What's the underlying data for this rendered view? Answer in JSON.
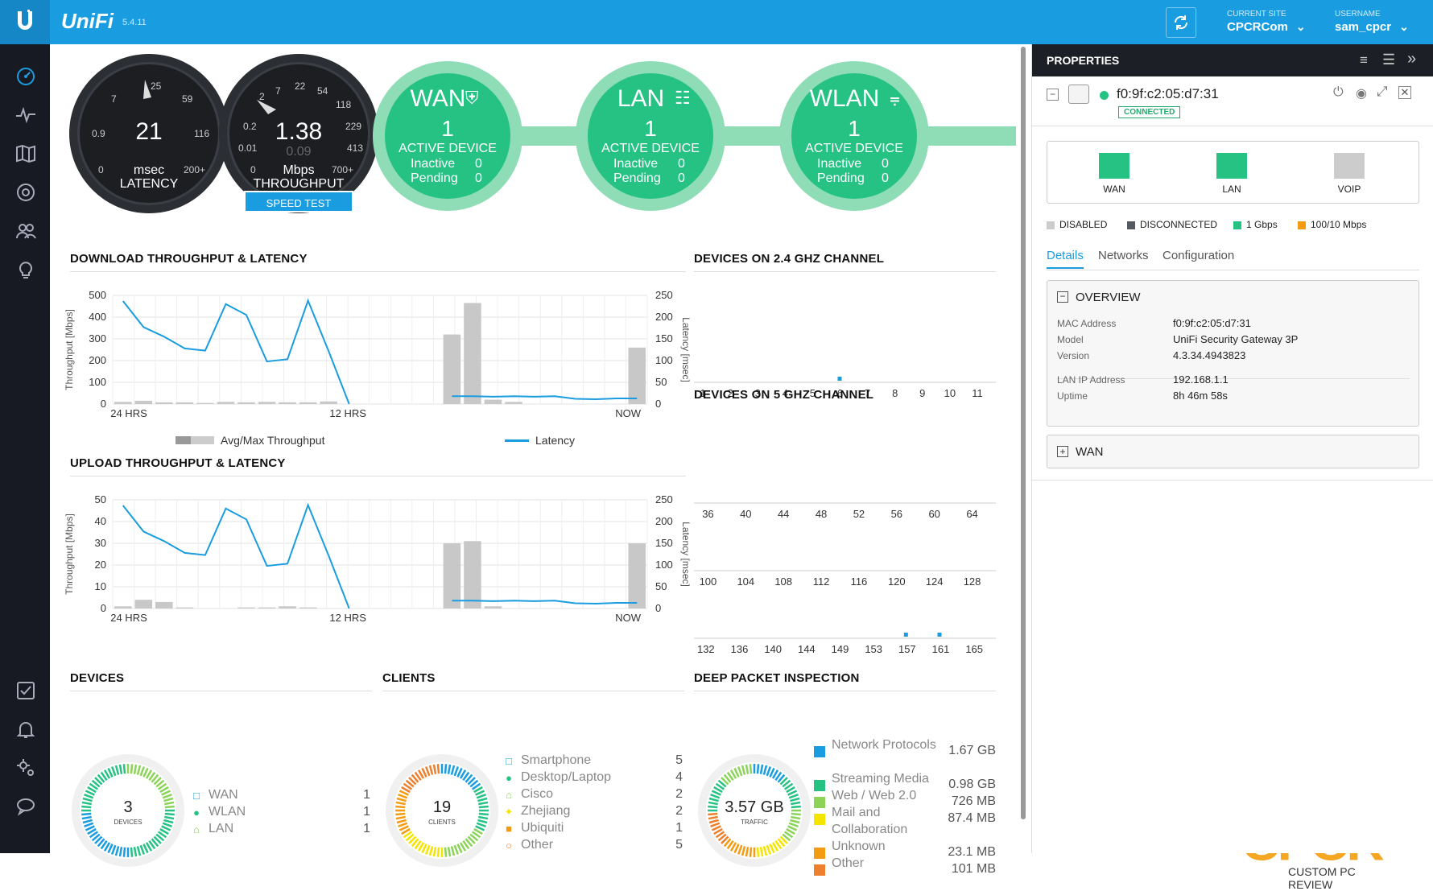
{
  "header": {
    "version": "5.4.11",
    "current_site_label": "CURRENT SITE",
    "current_site": "CPCRCom",
    "username_label": "USERNAME",
    "username": "sam_cpcr"
  },
  "gauges": {
    "latency": {
      "value": "21",
      "unit": "msec",
      "label": "LATENCY",
      "ticks": [
        "25",
        "7",
        "59",
        "0.9",
        "116",
        "0",
        "200+"
      ]
    },
    "throughput": {
      "value": "1.38",
      "sub": "0.09",
      "unit": "Mbps",
      "label": "THROUGHPUT",
      "ticks": [
        "2",
        "22",
        "7",
        "54",
        "118",
        "0.2",
        "229",
        "0.01",
        "413",
        "0",
        "700+"
      ]
    },
    "speed_test": "SPEED TEST"
  },
  "status": [
    {
      "title": "WAN",
      "count": "1",
      "label": "ACTIVE DEVICE",
      "inactive_label": "Inactive",
      "inactive": "0",
      "pending_label": "Pending",
      "pending": "0"
    },
    {
      "title": "LAN",
      "count": "1",
      "label": "ACTIVE DEVICE",
      "inactive_label": "Inactive",
      "inactive": "0",
      "pending_label": "Pending",
      "pending": "0"
    },
    {
      "title": "WLAN",
      "count": "1",
      "label": "ACTIVE DEVICE",
      "inactive_label": "Inactive",
      "inactive": "0",
      "pending_label": "Pending",
      "pending": "0"
    }
  ],
  "download": {
    "title": "DOWNLOAD THROUGHPUT & LATENCY",
    "ylabel": "Throughput [Mbps]",
    "y2label": "Latency [msec]",
    "yticks": [
      "500",
      "400",
      "300",
      "200",
      "100",
      "0"
    ],
    "y2ticks": [
      "250",
      "200",
      "150",
      "100",
      "50",
      "0"
    ],
    "xticks": [
      "24 HRS",
      "12 HRS",
      "NOW"
    ],
    "legend_bar": "Avg/Max Throughput",
    "legend_line": "Latency"
  },
  "upload": {
    "title": "UPLOAD THROUGHPUT & LATENCY",
    "ylabel": "Throughput [Mbps]",
    "y2label": "Latency [msec]",
    "yticks": [
      "50",
      "40",
      "30",
      "20",
      "10",
      "0"
    ],
    "y2ticks": [
      "250",
      "200",
      "150",
      "100",
      "50",
      "0"
    ],
    "xticks": [
      "24 HRS",
      "12 HRS",
      "NOW"
    ]
  },
  "chart_data": [
    {
      "type": "bar",
      "title": "DOWNLOAD THROUGHPUT & LATENCY",
      "ylabel": "Throughput [Mbps]",
      "y2label": "Latency [msec]",
      "ylim": [
        0,
        500
      ],
      "y2lim": [
        0,
        250
      ],
      "series": [
        {
          "name": "Avg/Max Throughput",
          "values": [
            10,
            15,
            8,
            8,
            5,
            10,
            8,
            10,
            8,
            8,
            12,
            0,
            0,
            0,
            0,
            0,
            320,
            465,
            20,
            10,
            0,
            0,
            0,
            0,
            0,
            260
          ]
        },
        {
          "name": "Latency",
          "values": [
            237,
            177,
            155,
            128,
            123,
            230,
            205,
            98,
            103,
            238,
            122,
            0,
            0,
            0,
            0,
            0,
            18,
            18,
            17,
            18,
            17,
            18,
            12,
            11,
            13,
            13
          ]
        }
      ]
    },
    {
      "type": "bar",
      "title": "UPLOAD THROUGHPUT & LATENCY",
      "ylabel": "Throughput [Mbps]",
      "y2label": "Latency [msec]",
      "ylim": [
        0,
        50
      ],
      "y2lim": [
        0,
        250
      ],
      "series": [
        {
          "name": "Avg/Max Throughput",
          "values": [
            1,
            4,
            3,
            0.5,
            0,
            0,
            0.5,
            0.5,
            1,
            0.5,
            0,
            0,
            0,
            0,
            0,
            0,
            30,
            31,
            1,
            0,
            0,
            0,
            0,
            0,
            0,
            30
          ]
        },
        {
          "name": "Latency",
          "values": [
            237,
            177,
            155,
            128,
            123,
            230,
            205,
            98,
            103,
            238,
            122,
            0,
            0,
            0,
            0,
            0,
            18,
            18,
            17,
            18,
            17,
            18,
            12,
            11,
            13,
            13
          ]
        }
      ]
    }
  ],
  "channels24": {
    "title": "DEVICES ON 2.4 GHZ CHANNEL",
    "labels": [
      "1",
      "2",
      "3",
      "4",
      "5",
      "6",
      "7",
      "8",
      "9",
      "10",
      "11"
    ]
  },
  "channels5": {
    "title": "DEVICES ON 5 GHZ CHANNEL",
    "row1": [
      "36",
      "40",
      "44",
      "48",
      "52",
      "56",
      "60",
      "64"
    ],
    "row2": [
      "100",
      "104",
      "108",
      "112",
      "116",
      "120",
      "124",
      "128"
    ],
    "row3": [
      "132",
      "136",
      "140",
      "144",
      "149",
      "153",
      "157",
      "161",
      "165"
    ]
  },
  "devices": {
    "title": "DEVICES",
    "total": "3",
    "sub": "DEVICES",
    "items": [
      {
        "label": "WAN",
        "count": "1"
      },
      {
        "label": "WLAN",
        "count": "1"
      },
      {
        "label": "LAN",
        "count": "1"
      }
    ]
  },
  "clients": {
    "title": "CLIENTS",
    "total": "19",
    "sub": "CLIENTS",
    "items": [
      {
        "label": "Smartphone",
        "count": "5"
      },
      {
        "label": "Desktop/Laptop",
        "count": "4"
      },
      {
        "label": "Cisco",
        "count": "2"
      },
      {
        "label": "Zhejiang",
        "count": "2"
      },
      {
        "label": "Ubiquiti",
        "count": "1"
      },
      {
        "label": "Other",
        "count": "5"
      }
    ]
  },
  "dpi": {
    "title": "DEEP PACKET INSPECTION",
    "total": "3.57 GB",
    "sub": "TRAFFIC",
    "items": [
      {
        "label": "Network Protocols",
        "value": "1.67 GB",
        "color": "#1a9de0"
      },
      {
        "label": "Streaming Media",
        "value": "0.98 GB",
        "color": "#26c284"
      },
      {
        "label": "Web / Web 2.0",
        "value": "726 MB",
        "color": "#8cd35a"
      },
      {
        "label": "Mail and Collaboration",
        "value": "87.4 MB",
        "color": "#f5e400"
      },
      {
        "label": "Unknown",
        "value": "23.1 MB",
        "color": "#f39c12"
      },
      {
        "label": "Other",
        "value": "101 MB",
        "color": "#ee7f2d"
      }
    ]
  },
  "properties": {
    "title": "PROPERTIES",
    "mac": "f0:9f:c2:05:d7:31",
    "status": "CONNECTED",
    "ports": [
      {
        "label": "WAN",
        "color": "#26c284"
      },
      {
        "label": "LAN",
        "color": "#26c284"
      },
      {
        "label": "VOIP",
        "color": "#cccccc"
      }
    ],
    "legend": [
      {
        "label": "DISABLED",
        "color": "#cccccc"
      },
      {
        "label": "DISCONNECTED",
        "color": "#555a62"
      },
      {
        "label": "1 Gbps",
        "color": "#26c284"
      },
      {
        "label": "100/10 Mbps",
        "color": "#f39c12"
      }
    ],
    "tabs": [
      "Details",
      "Networks",
      "Configuration"
    ],
    "overview_title": "OVERVIEW",
    "overview": [
      {
        "k": "MAC Address",
        "v": "f0:9f:c2:05:d7:31"
      },
      {
        "k": "Model",
        "v": "UniFi Security Gateway 3P"
      },
      {
        "k": "Version",
        "v": "4.3.34.4943823"
      },
      {
        "k": "LAN IP Address",
        "v": "192.168.1.1"
      },
      {
        "k": "Uptime",
        "v": "8h 46m 58s"
      }
    ],
    "wan_title": "WAN"
  },
  "watermark": {
    "brand": "CPCR",
    "tagline": "CUSTOM PC REVIEW"
  }
}
